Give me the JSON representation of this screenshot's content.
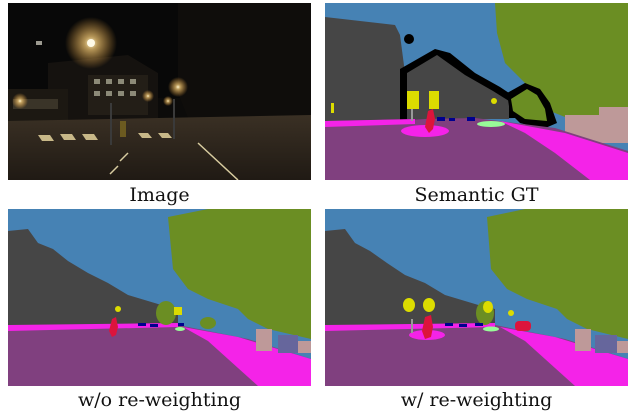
{
  "figure": {
    "panels": [
      {
        "id": "image",
        "caption": "Image"
      },
      {
        "id": "semantic-gt",
        "caption": "Semantic GT"
      },
      {
        "id": "without-reweighting",
        "caption": "w/o re-weighting"
      },
      {
        "id": "with-reweighting",
        "caption": "w/ re-weighting"
      }
    ]
  },
  "colors": {
    "sky": "#4682b4",
    "building": "#464646",
    "vegetation": "#6b8e23",
    "road": "#80407f",
    "sidewalk": "#f423e8",
    "person": "#dc143c",
    "traffic_sign": "#dcdc00",
    "car": "#00008e",
    "terrain": "#98fb98",
    "wall": "#66669c",
    "fence": "#be9999",
    "pole": "#999999",
    "void": "#000000"
  }
}
